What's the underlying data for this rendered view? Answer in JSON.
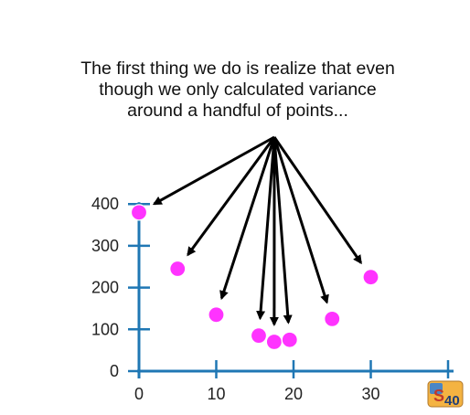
{
  "caption": "The first thing we do is realize that even\nthough we only calculated variance\naround a handful of points...",
  "colors": {
    "points": "#ff33ff",
    "axis": "#1f77b4",
    "arrows": "#000000"
  },
  "chart_data": {
    "type": "scatter",
    "title": "",
    "xlabel": "",
    "ylabel": "",
    "xlim": [
      0,
      40
    ],
    "ylim": [
      0,
      400
    ],
    "x_ticks": [
      "0",
      "10",
      "20",
      "30",
      "40"
    ],
    "y_ticks": [
      "0",
      "100",
      "200",
      "300",
      "400"
    ],
    "grid": false,
    "series": [
      {
        "x": [
          0,
          5,
          10,
          15.5,
          17.5,
          19.5,
          25,
          30
        ],
        "y": [
          380,
          245,
          135,
          85,
          70,
          75,
          125,
          225
        ]
      }
    ],
    "annotation": {
      "text_ref": "caption",
      "arrows_to_points": [
        0,
        1,
        2,
        3,
        4,
        5,
        6,
        7
      ]
    }
  },
  "logo": {
    "text": "S40"
  }
}
